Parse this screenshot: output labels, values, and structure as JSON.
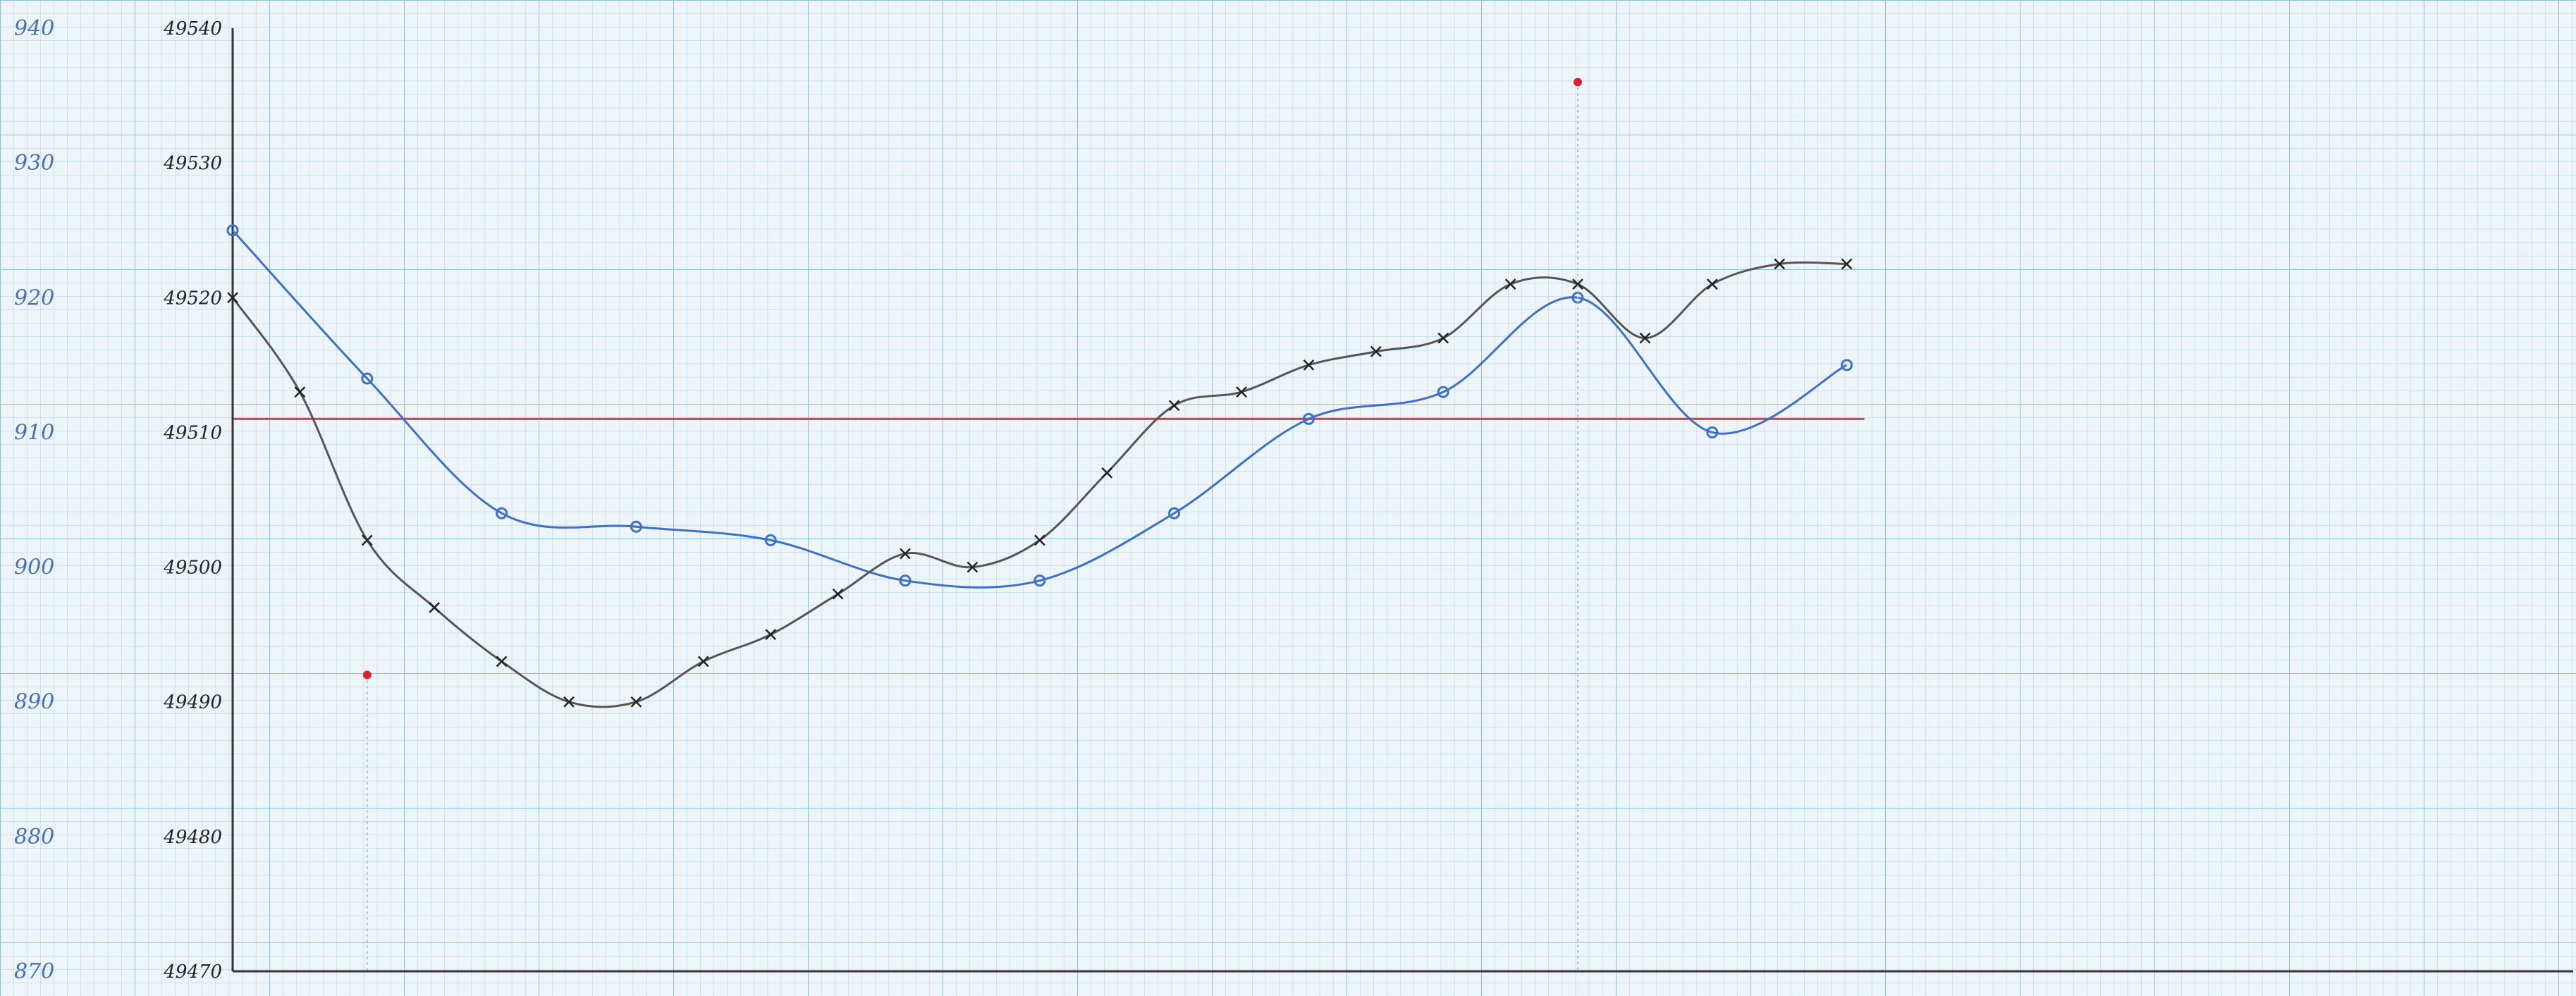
{
  "chart_data": {
    "type": "line",
    "title": "",
    "xlabel": "",
    "ylabel": "",
    "grid": true,
    "legend": "none",
    "x": [
      0,
      1,
      2,
      3,
      4,
      5,
      6,
      7,
      8,
      9,
      10,
      11,
      12,
      13,
      14,
      15,
      16,
      17,
      18,
      19,
      20,
      21,
      22,
      23,
      24
    ],
    "y_axes": {
      "left": {
        "ticks": [
          870,
          880,
          890,
          900,
          910,
          920,
          930,
          940
        ],
        "tick_labels": [
          "870",
          "880",
          "890",
          "900",
          "910",
          "920",
          "930",
          "940"
        ],
        "ylim": [
          870,
          940
        ]
      },
      "right": {
        "ticks": [
          49470,
          49480,
          49490,
          49500,
          49510,
          49520,
          49530,
          49540
        ],
        "tick_labels": [
          "49470",
          "49480",
          "49490",
          "49500",
          "49510",
          "49520",
          "49530",
          "49540"
        ],
        "ylim": [
          49470,
          49540
        ]
      }
    },
    "series": [
      {
        "axis": "left",
        "marker": "circle",
        "color": "#3f6fc6",
        "points": [
          [
            0,
            925
          ],
          [
            2,
            914
          ],
          [
            4,
            904
          ],
          [
            6,
            903
          ],
          [
            8,
            902
          ],
          [
            10,
            899
          ],
          [
            12,
            899
          ],
          [
            14,
            904
          ],
          [
            16,
            911
          ],
          [
            18,
            913
          ],
          [
            20,
            920
          ],
          [
            22,
            910
          ],
          [
            24,
            915
          ]
        ]
      },
      {
        "axis": "right",
        "marker": "x",
        "color": "#555555",
        "points": [
          [
            0,
            49520
          ],
          [
            1,
            49513
          ],
          [
            2,
            49502
          ],
          [
            3,
            49497
          ],
          [
            4,
            49493
          ],
          [
            5,
            49490
          ],
          [
            6,
            49490
          ],
          [
            7,
            49493
          ],
          [
            8,
            49495
          ],
          [
            9,
            49498
          ],
          [
            10,
            49501
          ],
          [
            11,
            49500
          ],
          [
            12,
            49502
          ],
          [
            13,
            49507
          ],
          [
            14,
            49512
          ],
          [
            15,
            49513
          ],
          [
            16,
            49515
          ],
          [
            17,
            49516
          ],
          [
            18,
            49517
          ],
          [
            19,
            49521
          ],
          [
            20,
            49521
          ],
          [
            21,
            49517
          ],
          [
            22,
            49521
          ],
          [
            23,
            49522.5
          ],
          [
            24,
            49522.5
          ]
        ]
      }
    ],
    "reference_lines": [
      {
        "axis": "left",
        "y": 911,
        "color": "#e8384a"
      }
    ],
    "annotations": [
      {
        "type": "point",
        "axis": "left",
        "x": 2,
        "y": 892,
        "color": "#d8242f"
      },
      {
        "type": "point",
        "axis": "left",
        "x": 20,
        "y": 936,
        "color": "#d8242f"
      }
    ]
  }
}
